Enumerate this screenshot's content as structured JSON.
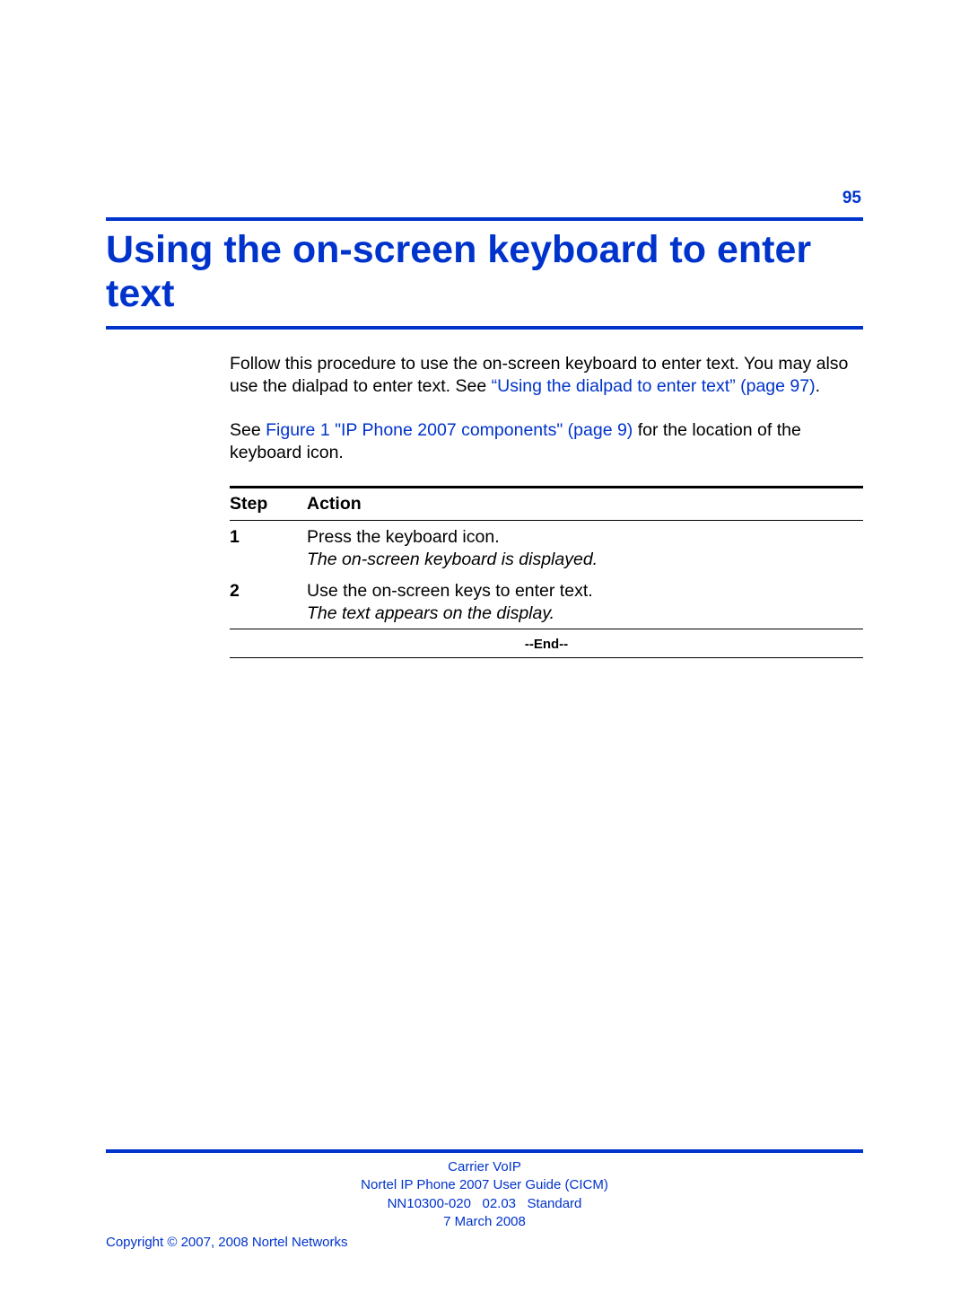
{
  "page_number": "95",
  "title": "Using the on-screen keyboard to enter text",
  "intro": {
    "p1a": "Follow this procedure to use the on-screen keyboard to enter text. You may also use the dialpad to enter text. See ",
    "p1link": "“Using the dialpad to enter text” (page 97)",
    "p1b": ".",
    "p2a": "See ",
    "p2link": "Figure 1 \"IP Phone 2007 components\" (page 9)",
    "p2b": " for the location of the keyboard icon."
  },
  "table": {
    "head_step": "Step",
    "head_action": "Action",
    "rows": [
      {
        "num": "1",
        "line1": "Press the keyboard icon.",
        "line2": "The on-screen keyboard is displayed."
      },
      {
        "num": "2",
        "line1": "Use the on-screen keys to enter text.",
        "line2": "The text appears on the display."
      }
    ],
    "end": "--End--"
  },
  "footer": {
    "l1": "Carrier VoIP",
    "l2": "Nortel IP Phone 2007 User Guide (CICM)",
    "l3": "NN10300-020   02.03   Standard",
    "l4": "7 March 2008",
    "copyright": "Copyright ©  2007, 2008  Nortel Networks"
  },
  "colors": {
    "link": "#0033cc",
    "text": "#000000",
    "bg": "#ffffff"
  }
}
